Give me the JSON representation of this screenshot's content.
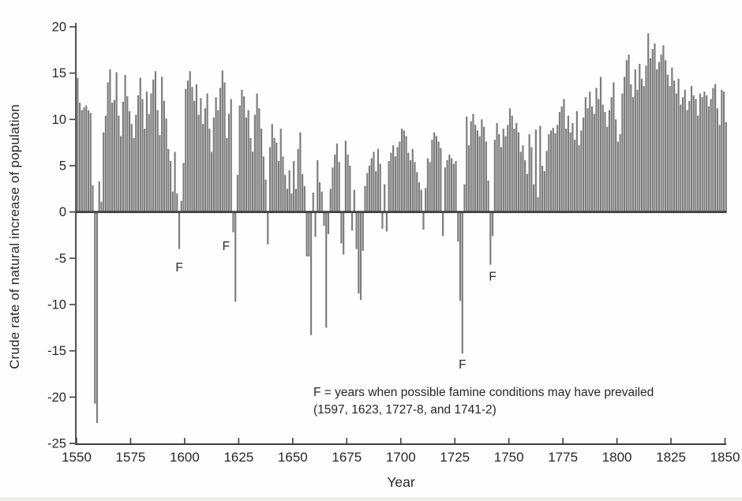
{
  "figure": {
    "background": "#fefefe",
    "bar_color": "#7d7d7d",
    "axis_color": "#3f3f3f",
    "text_color": "#262626"
  },
  "chart_data": {
    "type": "bar",
    "title": "",
    "xlabel": "Year",
    "ylabel": "Crude rate of natural increase of population",
    "x_range": [
      1550,
      1850
    ],
    "ylim": [
      -25,
      20
    ],
    "x_ticks": [
      1550,
      1575,
      1600,
      1625,
      1650,
      1675,
      1700,
      1725,
      1750,
      1775,
      1800,
      1825,
      1850
    ],
    "y_ticks": [
      20,
      15,
      10,
      5,
      0,
      -5,
      -10,
      -15,
      -20,
      -25
    ],
    "grid": false,
    "zero_line": true,
    "legend_position": "inside-bottom-center",
    "years_start": 1550,
    "values": [
      14.5,
      11.8,
      11.0,
      11.3,
      11.5,
      11.0,
      10.7,
      2.9,
      -20.7,
      -22.8,
      3.3,
      1.1,
      8.6,
      10.4,
      14.0,
      15.4,
      11.8,
      12.1,
      15.1,
      10.4,
      8.2,
      11.9,
      14.8,
      12.5,
      10.9,
      9.5,
      8.0,
      10.5,
      12.6,
      14.5,
      12.2,
      9.0,
      13.0,
      10.6,
      12.8,
      14.3,
      15.2,
      11.0,
      8.3,
      14.6,
      12.0,
      10.1,
      6.8,
      5.5,
      2.2,
      6.5,
      2.0,
      -4.0,
      1.2,
      5.3,
      13.3,
      14.2,
      15.2,
      13.5,
      12.0,
      13.8,
      10.5,
      12.3,
      9.5,
      11.2,
      12.8,
      9.0,
      6.5,
      10.2,
      12.4,
      11.0,
      13.4,
      15.3,
      14.0,
      8.0,
      10.6,
      12.2,
      -2.2,
      -9.7,
      4.0,
      11.5,
      13.2,
      12.5,
      10.2,
      11.0,
      8.0,
      6.5,
      10.5,
      12.8,
      11.2,
      9.0,
      6.0,
      3.5,
      -3.5,
      7.0,
      9.5,
      8.0,
      7.5,
      5.5,
      9.0,
      6.0,
      4.0,
      2.5,
      4.5,
      2.0,
      5.5,
      2.5,
      6.8,
      8.6,
      4.1,
      2.8,
      -4.8,
      -4.8,
      -13.3,
      2.1,
      -2.7,
      5.6,
      3.2,
      2.2,
      -1.5,
      -12.5,
      -2.4,
      2.5,
      4.8,
      6.2,
      7.4,
      5.4,
      -3.4,
      -4.6,
      7.7,
      6.2,
      5.0,
      -2.0,
      2.4,
      -4.0,
      -8.8,
      -9.5,
      -4.2,
      2.8,
      4.2,
      5.0,
      5.8,
      6.5,
      4.4,
      6.8,
      5.2,
      -1.8,
      3.0,
      -2.1,
      5.5,
      6.4,
      7.2,
      6.0,
      7.0,
      7.6,
      9.0,
      8.8,
      8.2,
      6.4,
      5.6,
      6.8,
      5.4,
      4.3,
      3.2,
      2.4,
      -1.9,
      2.6,
      5.8,
      5.4,
      7.8,
      8.6,
      8.2,
      7.6,
      6.9,
      -2.6,
      4.8,
      5.6,
      6.2,
      5.8,
      5.2,
      5.5,
      -3.2,
      -9.6,
      -15.3,
      3.0,
      10.3,
      7.2,
      9.8,
      10.6,
      9.4,
      8.8,
      8.2,
      10.0,
      9.2,
      7.6,
      3.4,
      -5.7,
      -2.6,
      7.8,
      9.6,
      8.4,
      7.0,
      9.0,
      8.2,
      9.4,
      11.2,
      10.4,
      9.0,
      9.6,
      8.6,
      6.5,
      7.2,
      5.6,
      4.1,
      8.4,
      7.0,
      3.0,
      8.9,
      1.6,
      9.3,
      5.0,
      4.4,
      6.6,
      8.4,
      8.8,
      9.1,
      8.5,
      9.4,
      10.8,
      11.4,
      12.2,
      9.0,
      10.4,
      8.6,
      9.6,
      7.8,
      10.9,
      7.2,
      8.8,
      10.2,
      12.4,
      11.2,
      13.0,
      11.4,
      10.6,
      13.4,
      12.2,
      14.6,
      11.6,
      10.8,
      9.2,
      11.0,
      12.4,
      14.0,
      10.0,
      7.6,
      8.4,
      12.8,
      14.6,
      16.4,
      17.0,
      13.8,
      12.4,
      15.4,
      13.2,
      16.0,
      14.4,
      13.6,
      15.8,
      19.3,
      16.6,
      17.6,
      18.2,
      15.4,
      16.2,
      17.0,
      18.0,
      16.4,
      14.8,
      13.6,
      15.6,
      14.2,
      12.8,
      14.4,
      11.6,
      12.4,
      13.2,
      11.0,
      12.0,
      13.6,
      12.6,
      12.2,
      10.4,
      12.8,
      12.4,
      13.0,
      12.6,
      11.4,
      12.2,
      13.4,
      13.8,
      11.2,
      9.4,
      13.2,
      13.0,
      9.7
    ],
    "annotations": [
      {
        "label": "F",
        "year": 1597,
        "y": -6.4,
        "dx": 0
      },
      {
        "label": "F",
        "year": 1623,
        "y": -4.1,
        "dx": -12
      },
      {
        "label": "F",
        "year": 1728,
        "y": -16.9,
        "dx": 0
      },
      {
        "label": "F",
        "year": 1742,
        "y": -7.4,
        "dx": 0
      }
    ],
    "legend": {
      "line1": "F = years when possible famine conditions may have prevailed",
      "line2": "(1597, 1623, 1727-8, and 1741-2)"
    }
  }
}
